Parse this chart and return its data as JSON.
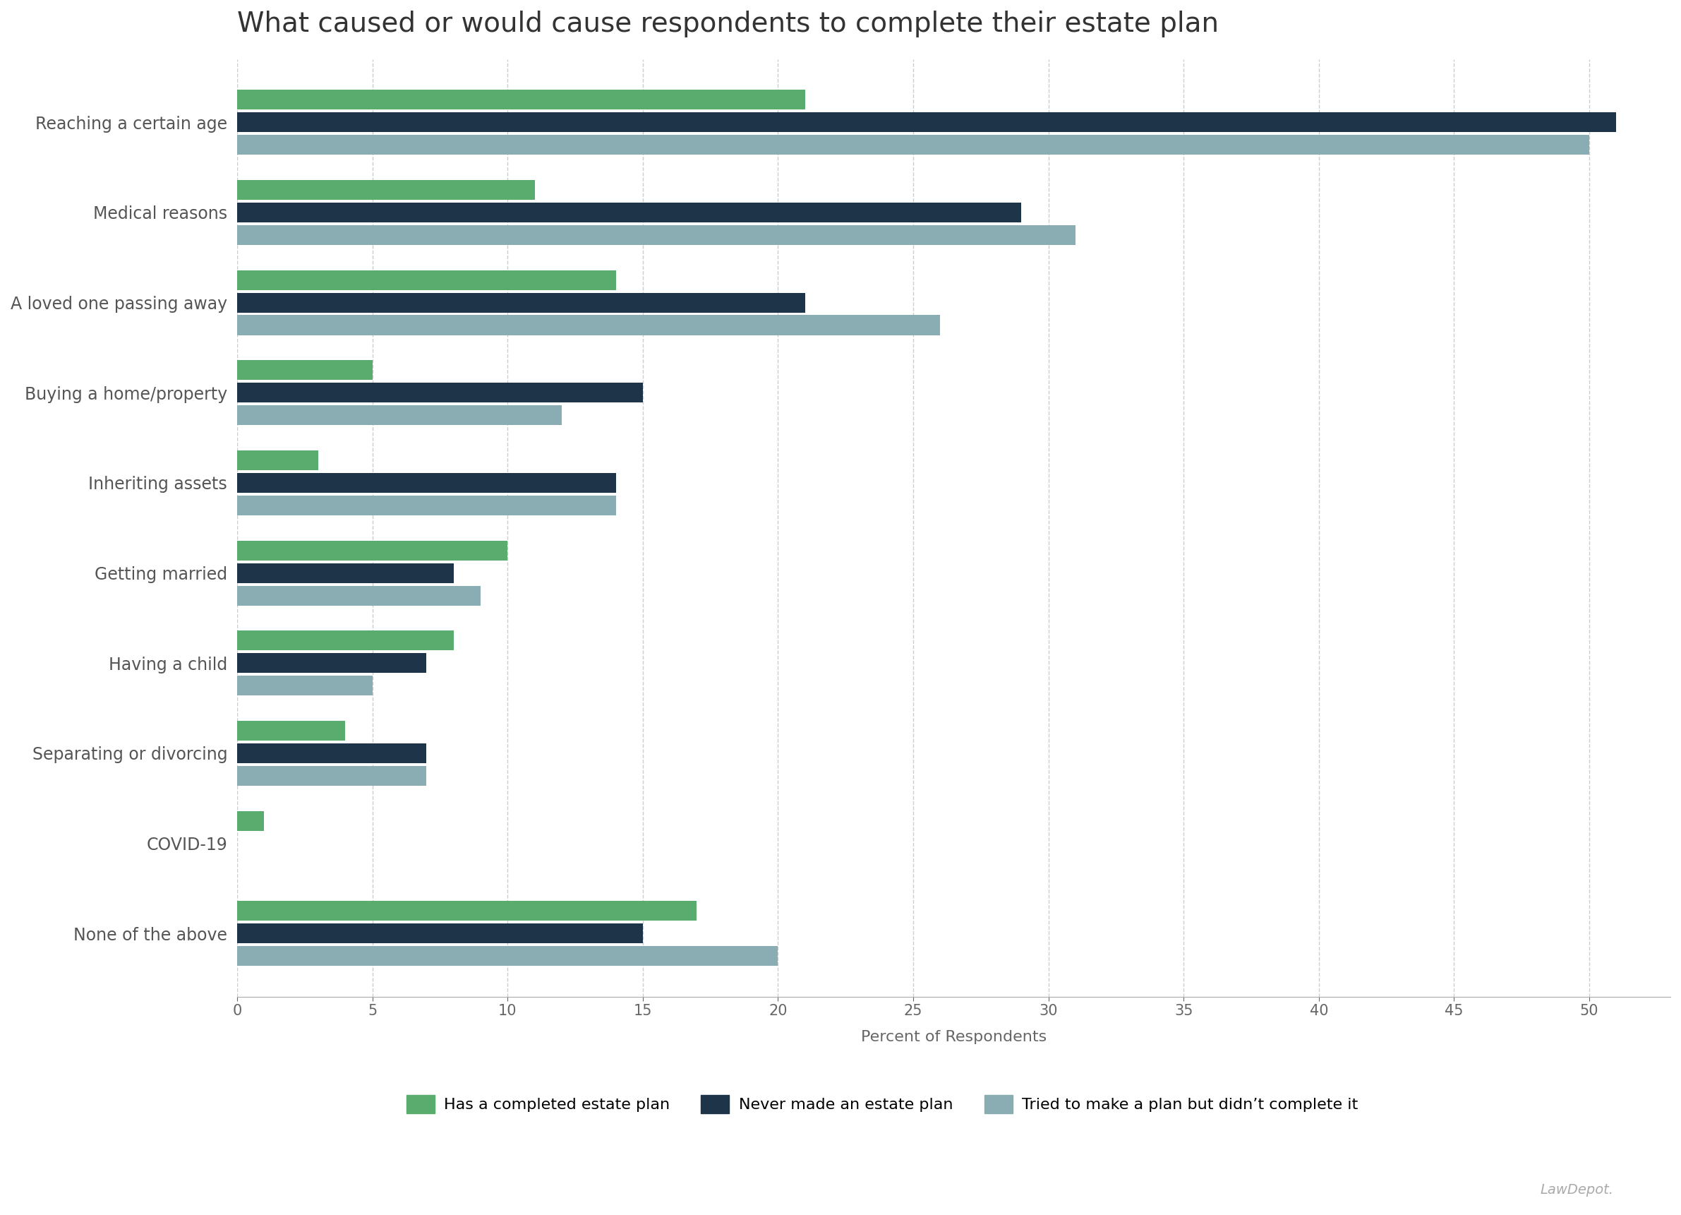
{
  "title": "What caused or would cause respondents to complete their estate plan",
  "categories": [
    "None of the above",
    "COVID-19",
    "Separating or divorcing",
    "Having a child",
    "Getting married",
    "Inheriting assets",
    "Buying a home/property",
    "A loved one passing away",
    "Medical reasons",
    "Reaching a certain age"
  ],
  "series": {
    "has_plan": {
      "label": "Has a completed estate plan",
      "color": "#5aab6e",
      "values": [
        17,
        1,
        4,
        8,
        10,
        3,
        5,
        14,
        11,
        21
      ]
    },
    "never_made": {
      "label": "Never made an estate plan",
      "color": "#1e3448",
      "values": [
        15,
        0,
        7,
        7,
        8,
        14,
        15,
        21,
        29,
        51
      ]
    },
    "tried": {
      "label": "Tried to make a plan but didn’t complete it",
      "color": "#8aacb3",
      "values": [
        20,
        0,
        7,
        5,
        9,
        14,
        12,
        26,
        31,
        50
      ]
    }
  },
  "xlabel": "Percent of Respondents",
  "xlim": [
    0,
    53
  ],
  "xticks": [
    0,
    5,
    10,
    15,
    20,
    25,
    30,
    35,
    40,
    45,
    50
  ],
  "background_color": "#ffffff",
  "title_fontsize": 28,
  "ylabel_fontsize": 17,
  "xlabel_fontsize": 16,
  "tick_fontsize": 15,
  "legend_fontsize": 16,
  "watermark": "LawDepot."
}
